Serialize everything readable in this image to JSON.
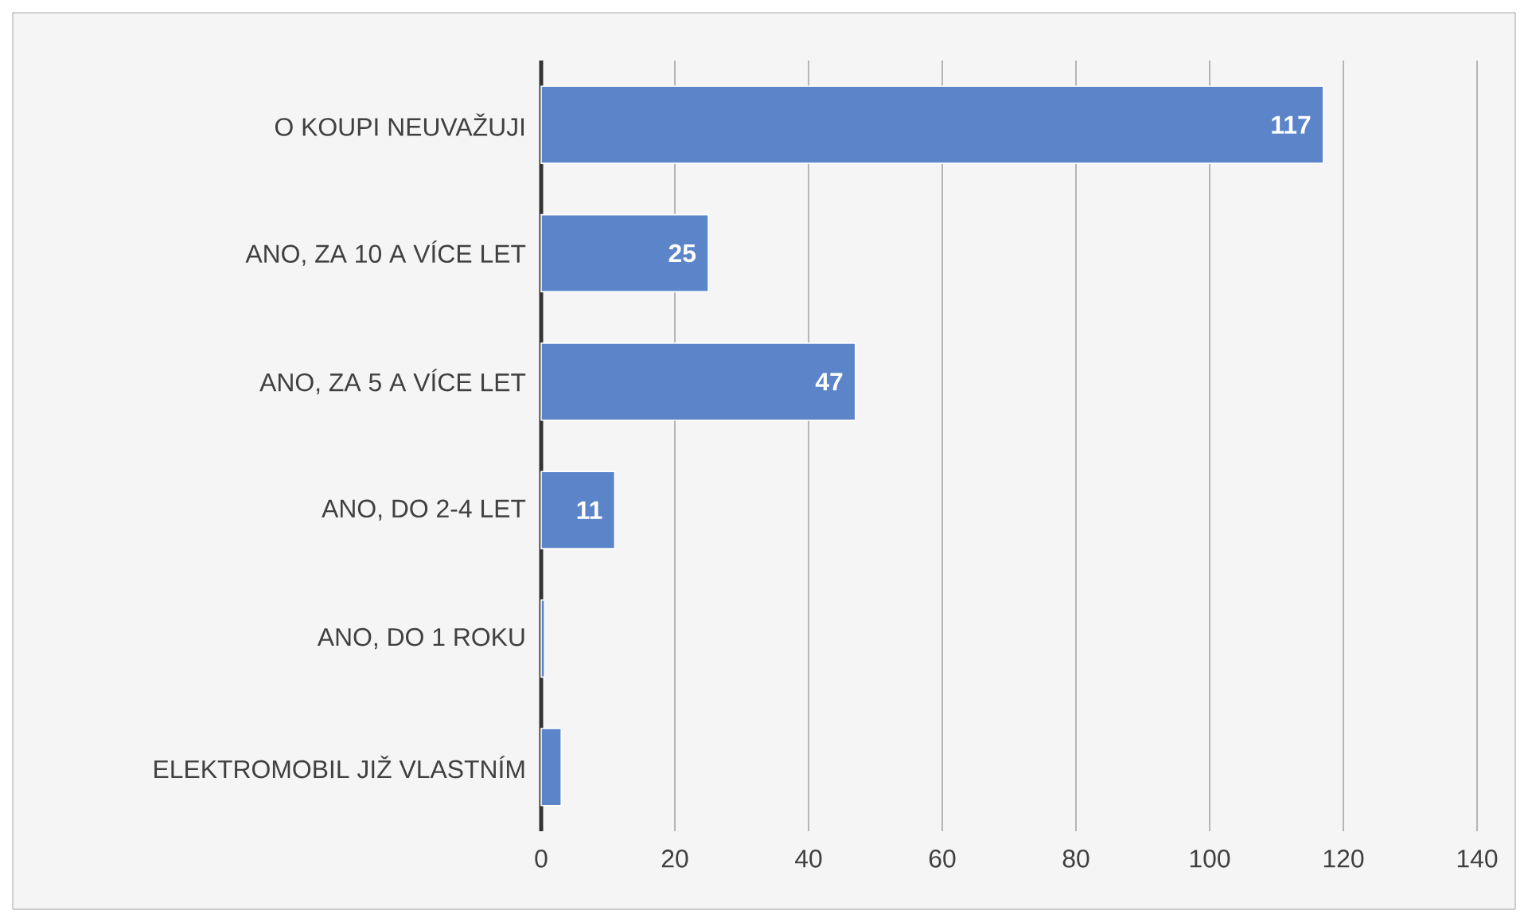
{
  "chart_data": {
    "type": "bar",
    "orientation": "horizontal",
    "categories": [
      "O KOUPI NEUVAŽUJI",
      "ANO, ZA 10 A VÍCE LET",
      "ANO, ZA 5 A VÍCE LET",
      "ANO, DO 2-4 LET",
      "ANO, DO 1 ROKU",
      "ELEKTROMOBIL JIŽ VLASTNÍM"
    ],
    "values": [
      117,
      25,
      47,
      11,
      0.5,
      3
    ],
    "value_labels": [
      "117",
      "25",
      "47",
      "11",
      null,
      null
    ],
    "color": "#5b84c9",
    "xlim": [
      0,
      140
    ],
    "xticks": [
      0,
      20,
      40,
      60,
      80,
      100,
      120,
      140
    ],
    "grid": "x"
  }
}
